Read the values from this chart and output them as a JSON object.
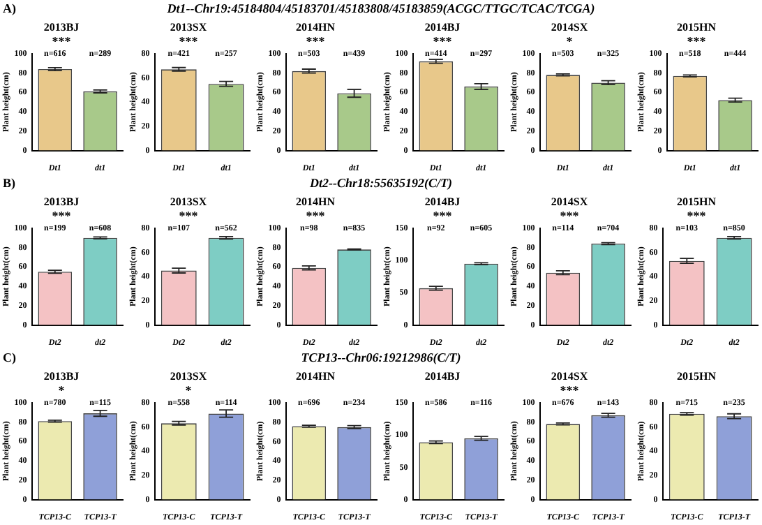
{
  "chart_data": [
    {
      "type": "bar",
      "title": "2013BJ",
      "subtitle": "***",
      "ylabel": "Plant height(cm)",
      "categories": [
        "Dt1",
        "dt1"
      ],
      "values": [
        84,
        61
      ],
      "errors": [
        1.5,
        1.5
      ],
      "colors": [
        "#e8c88a",
        "#a8c98a"
      ],
      "ylim": [
        0,
        100
      ],
      "yticks": [
        0,
        20,
        40,
        60,
        80,
        100
      ],
      "annotations": [
        "A)",
        "Dt1--Chr19:45184804/45183701/45183808/45183859(ACGC/TTGC/TCAC/TCGA)",
        "n=616",
        "n=289"
      ]
    },
    {
      "type": "bar",
      "title": "2013SX",
      "subtitle": "***",
      "ylabel": "Plant height(cm)",
      "categories": [
        "Dt1",
        "dt1"
      ],
      "values": [
        67,
        55
      ],
      "errors": [
        1.5,
        2
      ],
      "colors": [
        "#e8c88a",
        "#a8c98a"
      ],
      "ylim": [
        0,
        80
      ],
      "yticks": [
        0,
        20,
        40,
        60,
        80
      ],
      "annotations": [
        "n=421",
        "n=257"
      ]
    },
    {
      "type": "bar",
      "title": "2014HN",
      "subtitle": "***",
      "ylabel": "Plant height(cm)",
      "categories": [
        "Dt1",
        "dt1"
      ],
      "values": [
        82,
        59
      ],
      "errors": [
        2,
        4
      ],
      "colors": [
        "#e8c88a",
        "#a8c98a"
      ],
      "ylim": [
        0,
        100
      ],
      "yticks": [
        0,
        20,
        40,
        60,
        80,
        100
      ],
      "annotations": [
        "n=503",
        "n=439"
      ]
    },
    {
      "type": "bar",
      "title": "2014BJ",
      "subtitle": "***",
      "ylabel": "Plant height(cm)",
      "categories": [
        "Dt1",
        "dt1"
      ],
      "values": [
        92,
        66
      ],
      "errors": [
        2,
        3
      ],
      "colors": [
        "#e8c88a",
        "#a8c98a"
      ],
      "ylim": [
        0,
        100
      ],
      "yticks": [
        0,
        20,
        40,
        60,
        80,
        100
      ],
      "annotations": [
        "n=414",
        "n=297"
      ]
    },
    {
      "type": "bar",
      "title": "2014SX",
      "subtitle": "*",
      "ylabel": "Plant height(cm)",
      "categories": [
        "Dt1",
        "dt1"
      ],
      "values": [
        78,
        70
      ],
      "errors": [
        1,
        2
      ],
      "colors": [
        "#e8c88a",
        "#a8c98a"
      ],
      "ylim": [
        0,
        100
      ],
      "yticks": [
        0,
        20,
        40,
        60,
        80,
        100
      ],
      "annotations": [
        "n=503",
        "n=325"
      ]
    },
    {
      "type": "bar",
      "title": "2015HN",
      "subtitle": "***",
      "ylabel": "Plant height(cm)",
      "categories": [
        "Dt1",
        "dt1"
      ],
      "values": [
        77,
        52
      ],
      "errors": [
        1,
        2
      ],
      "colors": [
        "#e8c88a",
        "#a8c98a"
      ],
      "ylim": [
        0,
        100
      ],
      "yticks": [
        0,
        20,
        40,
        60,
        80,
        100
      ],
      "annotations": [
        "n=518",
        "n=444"
      ]
    },
    {
      "type": "bar",
      "title": "2013BJ",
      "subtitle": "***",
      "ylabel": "Plant height(cm)",
      "categories": [
        "Dt2",
        "dt2"
      ],
      "values": [
        55,
        90
      ],
      "errors": [
        1.5,
        1
      ],
      "colors": [
        "#f4c2c4",
        "#7ecdc4"
      ],
      "ylim": [
        0,
        100
      ],
      "yticks": [
        0,
        20,
        40,
        60,
        80,
        100
      ],
      "annotations": [
        "B)",
        "Dt2--Chr18:55635192(C/T)",
        "n=199",
        "n=608"
      ]
    },
    {
      "type": "bar",
      "title": "2013SX",
      "subtitle": "***",
      "ylabel": "Plant height(cm)",
      "categories": [
        "Dt2",
        "dt2"
      ],
      "values": [
        45,
        72
      ],
      "errors": [
        2,
        1
      ],
      "colors": [
        "#f4c2c4",
        "#7ecdc4"
      ],
      "ylim": [
        0,
        80
      ],
      "yticks": [
        0,
        20,
        40,
        60,
        80
      ],
      "annotations": [
        "n=107",
        "n=562"
      ]
    },
    {
      "type": "bar",
      "title": "2014HN",
      "subtitle": "***",
      "ylabel": "Plant height(cm)",
      "categories": [
        "Dt2",
        "dt2"
      ],
      "values": [
        59,
        78
      ],
      "errors": [
        2,
        0.5
      ],
      "colors": [
        "#f4c2c4",
        "#7ecdc4"
      ],
      "ylim": [
        0,
        100
      ],
      "yticks": [
        0,
        20,
        40,
        60,
        80,
        100
      ],
      "annotations": [
        "n=98",
        "n=835"
      ]
    },
    {
      "type": "bar",
      "title": "2014BJ",
      "subtitle": "***",
      "ylabel": "Plant height(cm)",
      "categories": [
        "Dt2",
        "dt2"
      ],
      "values": [
        57,
        95
      ],
      "errors": [
        3,
        1.5
      ],
      "colors": [
        "#f4c2c4",
        "#7ecdc4"
      ],
      "ylim": [
        0,
        150
      ],
      "yticks": [
        0,
        50,
        100,
        150
      ],
      "annotations": [
        "n=92",
        "n=605"
      ]
    },
    {
      "type": "bar",
      "title": "2014SX",
      "subtitle": "***",
      "ylabel": "Plant height(cm)",
      "categories": [
        "Dt2",
        "dt2"
      ],
      "values": [
        54,
        84
      ],
      "errors": [
        2,
        1
      ],
      "colors": [
        "#f4c2c4",
        "#7ecdc4"
      ],
      "ylim": [
        0,
        100
      ],
      "yticks": [
        0,
        20,
        40,
        60,
        80,
        100
      ],
      "annotations": [
        "n=114",
        "n=704"
      ]
    },
    {
      "type": "bar",
      "title": "2015HN",
      "subtitle": "***",
      "ylabel": "Plant height(cm)",
      "categories": [
        "Dt2",
        "dt2"
      ],
      "values": [
        53,
        72
      ],
      "errors": [
        2,
        1
      ],
      "colors": [
        "#f4c2c4",
        "#7ecdc4"
      ],
      "ylim": [
        0,
        80
      ],
      "yticks": [
        0,
        20,
        40,
        60,
        80
      ],
      "annotations": [
        "n=103",
        "n=850"
      ]
    },
    {
      "type": "bar",
      "title": "2013BJ",
      "subtitle": "*",
      "ylabel": "Plant height(cm)",
      "categories": [
        "TCP13-C",
        "TCP13-T"
      ],
      "values": [
        81,
        89
      ],
      "errors": [
        1,
        3
      ],
      "colors": [
        "#eceab0",
        "#8fa0d8"
      ],
      "ylim": [
        0,
        100
      ],
      "yticks": [
        0,
        20,
        40,
        60,
        80,
        100
      ],
      "annotations": [
        "C)",
        "TCP13--Chr06:19212986(C/T)",
        "n=780",
        "n=115"
      ]
    },
    {
      "type": "bar",
      "title": "2013SX",
      "subtitle": "*",
      "ylabel": "Plant height(cm)",
      "categories": [
        "TCP13-C",
        "TCP13-T"
      ],
      "values": [
        63,
        71
      ],
      "errors": [
        1.5,
        3
      ],
      "colors": [
        "#eceab0",
        "#8fa0d8"
      ],
      "ylim": [
        0,
        80
      ],
      "yticks": [
        0,
        20,
        40,
        60,
        80
      ],
      "annotations": [
        "n=558",
        "n=114"
      ]
    },
    {
      "type": "bar",
      "title": "2014HN",
      "ylabel": "Plant height(cm)",
      "categories": [
        "TCP13-C",
        "TCP13-T"
      ],
      "values": [
        76,
        75
      ],
      "errors": [
        1,
        1.5
      ],
      "colors": [
        "#eceab0",
        "#8fa0d8"
      ],
      "ylim": [
        0,
        100
      ],
      "yticks": [
        0,
        20,
        40,
        60,
        80,
        100
      ],
      "annotations": [
        "n=696",
        "n=234"
      ]
    },
    {
      "type": "bar",
      "title": "2014BJ",
      "ylabel": "Plant height(cm)",
      "categories": [
        "TCP13-C",
        "TCP13-T"
      ],
      "values": [
        89,
        95
      ],
      "errors": [
        2,
        3
      ],
      "colors": [
        "#eceab0",
        "#8fa0d8"
      ],
      "ylim": [
        0,
        150
      ],
      "yticks": [
        0,
        50,
        100,
        150
      ],
      "annotations": [
        "n=586",
        "n=116"
      ]
    },
    {
      "type": "bar",
      "title": "2014SX",
      "subtitle": "***",
      "ylabel": "Plant height(cm)",
      "categories": [
        "TCP13-C",
        "TCP13-T"
      ],
      "values": [
        78,
        87
      ],
      "errors": [
        1,
        2
      ],
      "colors": [
        "#eceab0",
        "#8fa0d8"
      ],
      "ylim": [
        0,
        100
      ],
      "yticks": [
        0,
        20,
        40,
        60,
        80,
        100
      ],
      "annotations": [
        "n=676",
        "n=143"
      ]
    },
    {
      "type": "bar",
      "title": "2015HN",
      "ylabel": "Plant height(cm)",
      "categories": [
        "TCP13-C",
        "TCP13-T"
      ],
      "values": [
        71,
        69
      ],
      "errors": [
        1,
        2
      ],
      "colors": [
        "#eceab0",
        "#8fa0d8"
      ],
      "ylim": [
        0,
        80
      ],
      "yticks": [
        0,
        20,
        40,
        60,
        80
      ],
      "annotations": [
        "n=715",
        "n=235"
      ]
    }
  ]
}
